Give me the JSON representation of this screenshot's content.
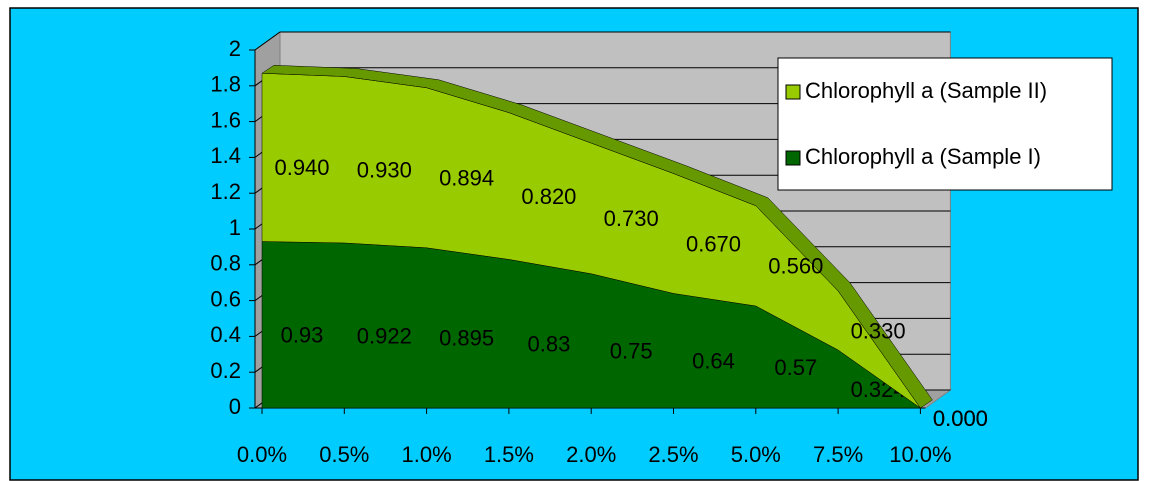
{
  "chart_data": {
    "type": "stacked-area-3d",
    "categories": [
      "0.0%",
      "0.5%",
      "1.0%",
      "1.5%",
      "2.0%",
      "2.5%",
      "5.0%",
      "7.5%",
      "10.0%"
    ],
    "series": [
      {
        "name": "Chlorophyll a (Sample I)",
        "color": "#006600",
        "values": [
          0.93,
          0.922,
          0.895,
          0.83,
          0.75,
          0.64,
          0.57,
          0.324,
          0
        ],
        "value_labels": [
          "0.93",
          "0.922",
          "0.895",
          "0.83",
          "0.75",
          "0.64",
          "0.57",
          "0.324",
          "0.000"
        ]
      },
      {
        "name": "Chlorophyll a (Sample II)",
        "color": "#99cc00",
        "values": [
          0.94,
          0.93,
          0.894,
          0.82,
          0.73,
          0.67,
          0.56,
          0.33,
          0
        ],
        "value_labels": [
          "0.940",
          "0.930",
          "0.894",
          "0.820",
          "0.730",
          "0.670",
          "0.560",
          "0.330",
          "0.000"
        ]
      }
    ],
    "ylim": [
      0,
      2
    ],
    "yticks": [
      0,
      0.2,
      0.4,
      0.6,
      0.8,
      1,
      1.2,
      1.4,
      1.6,
      1.8,
      2
    ],
    "grid": true,
    "legend": "right"
  }
}
